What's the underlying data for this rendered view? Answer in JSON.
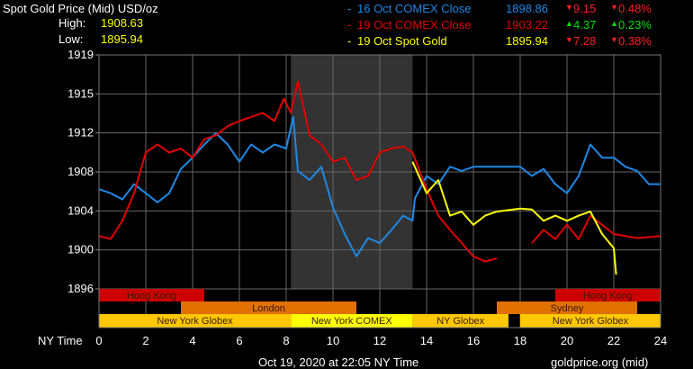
{
  "header": {
    "title": "Spot Gold Price (Mid) USD/oz",
    "high_label": "High:",
    "high_value": "1908.63",
    "low_label": "Low:",
    "low_value": "1895.94"
  },
  "legend": [
    {
      "dash": "-",
      "label": "16 Oct COMEX Close",
      "price": "1898.86",
      "change": "9.15",
      "change_pct": "0.48%",
      "direction": "down",
      "color": "#1e88e5"
    },
    {
      "dash": "-",
      "label": "19 Oct COMEX Close",
      "price": "1903.22",
      "change": "4.37",
      "change_pct": "0.23%",
      "direction": "up",
      "color": "#e00000"
    },
    {
      "dash": "-",
      "label": "19 Oct Spot Gold",
      "price": "1895.94",
      "change": "7.28",
      "change_pct": "0.38%",
      "direction": "down",
      "color": "#ffff00"
    }
  ],
  "footer": {
    "timestamp": "Oct 19, 2020 at 22:05 NY Time",
    "source": "goldprice.org (mid)"
  },
  "chart_data": {
    "type": "line",
    "xlabel": "NY Time",
    "xlim": [
      0,
      24
    ],
    "ylim": [
      1896,
      1919
    ],
    "x_ticks": [
      "0",
      "2",
      "4",
      "6",
      "8",
      "10",
      "12",
      "14",
      "16",
      "18",
      "20",
      "22",
      "24"
    ],
    "y_ticks": [
      "1919",
      "1915",
      "1912",
      "1908",
      "1904",
      "1900",
      "1896"
    ],
    "grid": true,
    "shaded_region": [
      8.2,
      13.4
    ],
    "series": [
      {
        "name": "16 Oct COMEX Close",
        "color": "#1e88e5",
        "x": [
          0,
          0.5,
          1,
          1.5,
          2,
          2.5,
          3,
          3.5,
          4,
          4.5,
          5,
          5.5,
          6,
          6.5,
          7,
          7.5,
          8,
          8.3,
          8.5,
          9,
          9.5,
          10,
          10.5,
          11,
          11.5,
          12,
          12.5,
          13,
          13.4,
          13.5,
          14,
          14.5,
          15,
          15.5,
          16,
          17,
          18,
          18.5,
          19,
          19.5,
          20,
          20.5,
          21,
          21.5,
          22,
          22.5,
          23,
          23.5,
          24
        ],
        "y": [
          1905.8,
          1905.4,
          1904.8,
          1906.3,
          1905.4,
          1904.5,
          1905.4,
          1907.8,
          1908.9,
          1910.2,
          1911.3,
          1910.2,
          1908.5,
          1910.2,
          1909.4,
          1910.2,
          1909.8,
          1912.9,
          1907.6,
          1906.7,
          1908.0,
          1904.0,
          1901.4,
          1899.2,
          1901.0,
          1900.5,
          1901.8,
          1903.2,
          1902.7,
          1904.9,
          1907.1,
          1906.3,
          1908.0,
          1907.6,
          1908.0,
          1908.0,
          1908.0,
          1907.1,
          1907.8,
          1906.3,
          1905.4,
          1907.1,
          1910.2,
          1908.9,
          1908.9,
          1908.0,
          1907.6,
          1906.3,
          1906.3
        ]
      },
      {
        "name": "19 Oct COMEX Close",
        "color": "#e00000",
        "x": [
          0,
          0.5,
          1,
          1.5,
          2,
          2.5,
          3,
          3.5,
          4,
          4.5,
          5,
          5.5,
          6,
          6.5,
          7,
          7.5,
          7.9,
          8.2,
          8.5,
          9,
          9.5,
          10,
          10.5,
          11,
          11.5,
          12,
          12.5,
          13,
          13.4,
          14,
          14.5,
          15,
          15.5,
          16,
          16.5,
          17,
          null,
          18.5,
          19,
          19.5,
          20,
          20.5,
          21,
          21.5,
          22,
          23,
          24
        ],
        "y": [
          1901.2,
          1900.9,
          1902.7,
          1905.4,
          1909.4,
          1910.2,
          1909.4,
          1909.8,
          1908.9,
          1910.7,
          1911.1,
          1912.0,
          1912.5,
          1912.9,
          1913.3,
          1912.5,
          1914.7,
          1913.3,
          1916.4,
          1911.1,
          1910.2,
          1908.5,
          1908.9,
          1906.7,
          1907.1,
          1909.4,
          1909.8,
          1910.0,
          1909.4,
          1905.8,
          1903.2,
          1901.8,
          1900.5,
          1899.2,
          1898.7,
          1899.0,
          null,
          1900.5,
          1901.8,
          1900.9,
          1902.3,
          1900.9,
          1903.2,
          1902.3,
          1901.4,
          1901.0,
          1901.2
        ]
      },
      {
        "name": "19 Oct Spot Gold",
        "color": "#ffff00",
        "x": [
          13.4,
          14,
          14.5,
          15,
          15.5,
          16,
          16.5,
          17,
          18,
          18.5,
          19,
          19.5,
          20,
          20.5,
          21,
          21.5,
          22,
          22.1
        ],
        "y": [
          1908.5,
          1905.4,
          1906.7,
          1903.2,
          1903.6,
          1902.3,
          1903.2,
          1903.6,
          1903.9,
          1903.8,
          1902.7,
          1903.2,
          1902.7,
          1903.2,
          1903.6,
          1901.4,
          1900.0,
          1897.4
        ]
      }
    ],
    "sessions": [
      {
        "label": "Hong Kong",
        "row": 0,
        "start": 0,
        "end": 4.5,
        "color": "#cc0000"
      },
      {
        "label": "Hong Kong",
        "row": 0,
        "start": 19.5,
        "end": 24,
        "color": "#cc0000"
      },
      {
        "label": "London",
        "row": 1,
        "start": 3.5,
        "end": 11,
        "color": "#e07000"
      },
      {
        "label": "Sydney",
        "row": 1,
        "start": 17,
        "end": 23,
        "color": "#e07000"
      },
      {
        "label": "New York Globex",
        "row": 2,
        "start": 0,
        "end": 8.2,
        "color": "#ffc800"
      },
      {
        "label": "New York COMEX",
        "row": 2,
        "start": 8.2,
        "end": 13.4,
        "color": "#ffff00"
      },
      {
        "label": "NY Globex",
        "row": 2,
        "start": 13.4,
        "end": 17.5,
        "color": "#ffc800"
      },
      {
        "label": "New York Globex",
        "row": 2,
        "start": 18,
        "end": 24,
        "color": "#ffc800"
      }
    ]
  }
}
